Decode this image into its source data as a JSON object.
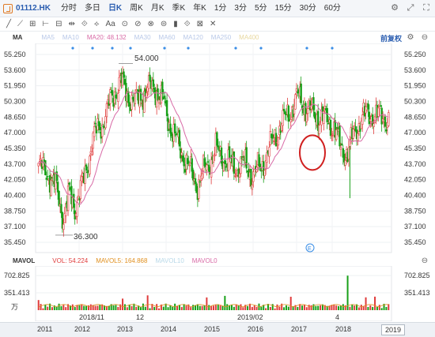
{
  "header": {
    "ticker": "01112.HK",
    "periods": [
      "分时",
      "多日",
      "日K",
      "周K",
      "月K",
      "季K",
      "年K",
      "1分",
      "3分",
      "5分",
      "15分",
      "30分",
      "60分"
    ],
    "active_period": "日K"
  },
  "toolbar": {
    "tools": [
      "╱",
      "⟋",
      "⊞",
      "⊢",
      "⊟",
      "⇹",
      "⟐",
      "⟡",
      "Aa",
      "⊙",
      "⊘",
      "⊗",
      "⊜",
      "▮",
      "⟐",
      "⊠",
      "✕"
    ]
  },
  "ma": {
    "title": "MA",
    "items": [
      {
        "label": "MA5",
        "color": "#b8c8e8"
      },
      {
        "label": "MA10",
        "color": "#b8c8e8"
      },
      {
        "label": "MA20: 48.132",
        "color": "#d86aa6"
      },
      {
        "label": "MA30",
        "color": "#b8c8e8"
      },
      {
        "label": "MA60",
        "color": "#b8c8e8"
      },
      {
        "label": "MA120",
        "color": "#b8c8e8"
      },
      {
        "label": "MA250",
        "color": "#b8c8e8"
      },
      {
        "label": "MA400",
        "color": "#e8d8a0"
      }
    ],
    "fq_label": "前复权"
  },
  "price_axis": [
    "55.250",
    "53.600",
    "51.950",
    "50.300",
    "48.650",
    "47.000",
    "45.350",
    "43.700",
    "42.050",
    "40.400",
    "38.750",
    "37.100",
    "35.450"
  ],
  "annotations": {
    "high": "54.000",
    "low": "36.300"
  },
  "mavol": {
    "title": "MAVOL",
    "items": [
      {
        "label": "VOL: 54.224",
        "color": "#e03c3c"
      },
      {
        "label": "MAVOL5: 164.868",
        "color": "#e09020"
      },
      {
        "label": "MAVOL10",
        "color": "#b8d8e8"
      },
      {
        "label": "MAVOL0",
        "color": "#d86aa6"
      }
    ],
    "axis": [
      "702.825",
      "351.413"
    ],
    "unit": "万"
  },
  "time_axis": {
    "labels": [
      {
        "text": "2011"
      },
      {
        "text": "2018/11"
      },
      {
        "text": "2012"
      },
      {
        "text": "2013"
      },
      {
        "text": "12"
      },
      {
        "text": "2014"
      },
      {
        "text": "2015"
      },
      {
        "text": "2019/02"
      },
      {
        "text": "2016"
      },
      {
        "text": "2017"
      },
      {
        "text": "4"
      },
      {
        "text": "2018"
      }
    ],
    "year_box": "2019"
  },
  "colors": {
    "up": "#e03c3c",
    "down": "#18a018",
    "ma20": "#d86aa6",
    "circle": "#d02020"
  },
  "chart_data": {
    "type": "candlestick",
    "ma20_value": 48.132,
    "ylim": [
      35.45,
      55.25
    ],
    "high_marker": 54.0,
    "low_marker": 36.3
  }
}
